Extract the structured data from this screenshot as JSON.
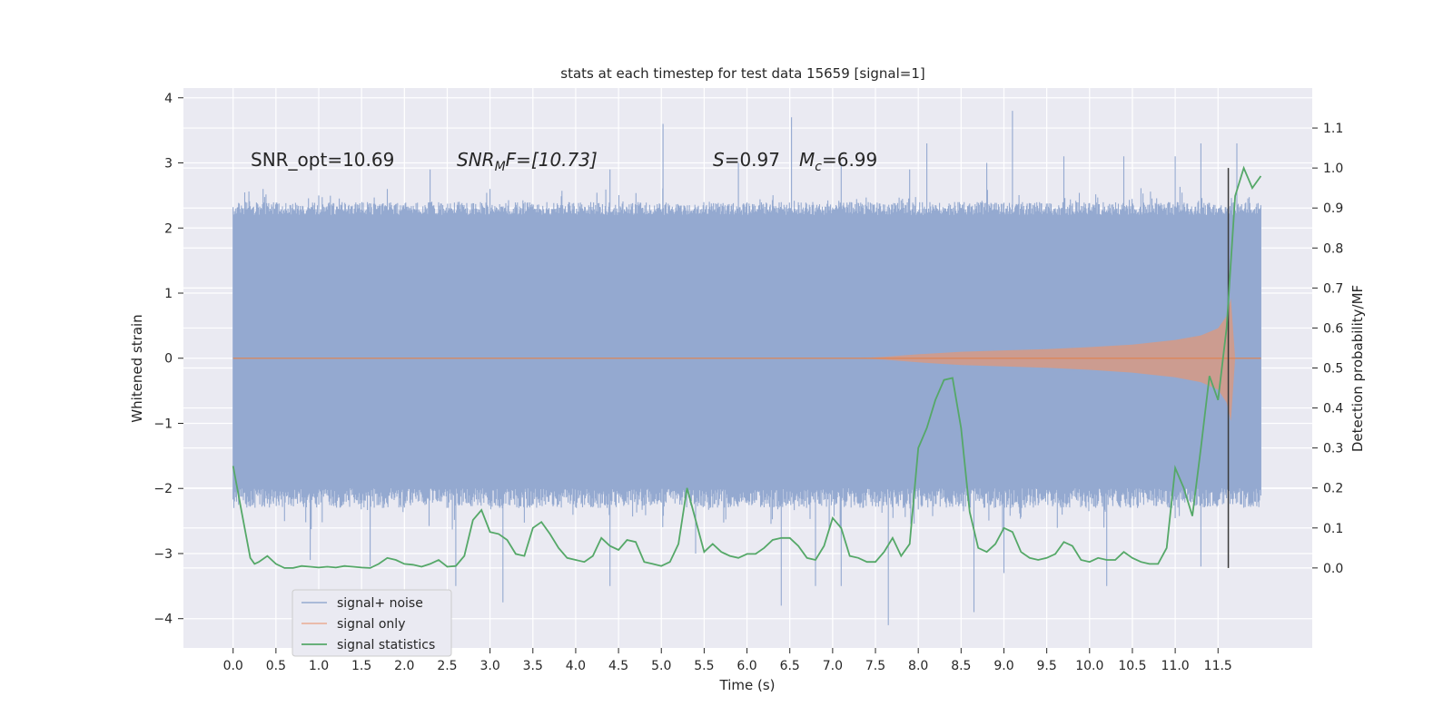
{
  "chart_data": {
    "type": "line",
    "title": "stats at each timestep for test data 15659 [signal=1]",
    "xlabel": "Time (s)",
    "ylabel": "Whitened strain",
    "y2label": "Detection probability/MF",
    "xlim": [
      -0.58,
      12.6
    ],
    "ylim": [
      -4.45,
      4.15
    ],
    "y2lim": [
      -0.2,
      1.2
    ],
    "x_ticks": [
      "0.0",
      "0.5",
      "1.0",
      "1.5",
      "2.0",
      "2.5",
      "3.0",
      "3.5",
      "4.0",
      "4.5",
      "5.0",
      "5.5",
      "6.0",
      "6.5",
      "7.0",
      "7.5",
      "8.0",
      "8.5",
      "9.0",
      "9.5",
      "10.0",
      "10.5",
      "11.0",
      "11.5"
    ],
    "y_ticks": [
      "4",
      "3",
      "2",
      "1",
      "0",
      "−1",
      "−2",
      "−3",
      "−4"
    ],
    "y2_ticks": [
      "1.1",
      "1.0",
      "0.9",
      "0.8",
      "0.7",
      "0.6",
      "0.5",
      "0.4",
      "0.3",
      "0.2",
      "0.1",
      "0.0"
    ],
    "grid": true,
    "legend_position": "lower-left",
    "annotations": {
      "snr_opt": "SNR_opt=10.69",
      "snr_mf_main": "SNR",
      "snr_mf_sub": "M",
      "snr_mf_rest": "F=[10.73]",
      "s_label": "S",
      "s_value": "=0.97",
      "mc_main": "M",
      "mc_sub": "c",
      "mc_value": "=6.99"
    },
    "merger_time": 11.62,
    "series": [
      {
        "name": "signal+ noise",
        "color": "#4c72b0",
        "x_range": [
          0.0,
          12.0
        ],
        "envelope": {
          "upper_typical": [
            2.2,
            2.4
          ],
          "lower_typical": [
            -2.3,
            -2.0
          ],
          "peaks_upper": [
            [
              0.35,
              2.6
            ],
            [
              1.0,
              2.5
            ],
            [
              1.8,
              2.6
            ],
            [
              2.3,
              2.9
            ],
            [
              3.0,
              2.6
            ],
            [
              4.4,
              2.9
            ],
            [
              5.02,
              3.6
            ],
            [
              5.9,
              3.0
            ],
            [
              6.52,
              3.7
            ],
            [
              7.1,
              3.0
            ],
            [
              7.9,
              2.9
            ],
            [
              8.1,
              3.3
            ],
            [
              8.8,
              3.0
            ],
            [
              9.1,
              3.8
            ],
            [
              9.7,
              3.1
            ],
            [
              10.4,
              3.1
            ],
            [
              11.0,
              3.1
            ],
            [
              11.3,
              3.3
            ],
            [
              11.72,
              3.3
            ]
          ],
          "peaks_lower": [
            [
              0.9,
              -3.1
            ],
            [
              1.6,
              -3.2
            ],
            [
              2.6,
              -3.5
            ],
            [
              3.15,
              -3.75
            ],
            [
              4.4,
              -3.5
            ],
            [
              5.4,
              -3.0
            ],
            [
              6.4,
              -3.8
            ],
            [
              6.8,
              -3.5
            ],
            [
              7.1,
              -3.5
            ],
            [
              7.65,
              -4.1
            ],
            [
              8.65,
              -3.9
            ],
            [
              9.0,
              -3.3
            ],
            [
              10.2,
              -3.5
            ],
            [
              11.3,
              -3.2
            ]
          ]
        }
      },
      {
        "name": "signal only",
        "color": "#dd8452",
        "x": [
          0.0,
          7.3,
          7.6,
          8.0,
          8.5,
          9.0,
          9.5,
          10.0,
          10.5,
          11.0,
          11.3,
          11.5,
          11.6,
          11.65,
          11.7,
          12.0
        ],
        "amplitude": [
          0.0,
          0.0,
          0.02,
          0.06,
          0.1,
          0.12,
          0.14,
          0.17,
          0.21,
          0.28,
          0.35,
          0.46,
          0.65,
          0.92,
          0.0,
          0.0
        ]
      },
      {
        "name": "signal statistics",
        "color": "#55a868",
        "x": [
          0.0,
          0.1,
          0.2,
          0.25,
          0.3,
          0.4,
          0.5,
          0.6,
          0.7,
          0.8,
          0.9,
          1.0,
          1.1,
          1.2,
          1.3,
          1.4,
          1.5,
          1.6,
          1.7,
          1.8,
          1.9,
          2.0,
          2.1,
          2.2,
          2.3,
          2.4,
          2.5,
          2.6,
          2.7,
          2.8,
          2.9,
          3.0,
          3.1,
          3.2,
          3.3,
          3.4,
          3.5,
          3.6,
          3.7,
          3.8,
          3.9,
          4.0,
          4.1,
          4.2,
          4.3,
          4.4,
          4.5,
          4.6,
          4.7,
          4.8,
          4.9,
          5.0,
          5.1,
          5.2,
          5.3,
          5.4,
          5.5,
          5.6,
          5.7,
          5.8,
          5.9,
          6.0,
          6.1,
          6.2,
          6.3,
          6.4,
          6.5,
          6.6,
          6.7,
          6.8,
          6.9,
          7.0,
          7.1,
          7.2,
          7.3,
          7.4,
          7.5,
          7.6,
          7.7,
          7.8,
          7.9,
          8.0,
          8.1,
          8.2,
          8.3,
          8.4,
          8.5,
          8.6,
          8.7,
          8.8,
          8.9,
          9.0,
          9.1,
          9.2,
          9.3,
          9.4,
          9.5,
          9.6,
          9.7,
          9.8,
          9.9,
          10.0,
          10.1,
          10.2,
          10.3,
          10.4,
          10.5,
          10.6,
          10.7,
          10.8,
          10.9,
          11.0,
          11.1,
          11.2,
          11.3,
          11.4,
          11.5,
          11.55,
          11.6,
          11.7,
          11.8,
          11.9,
          12.0
        ],
        "values": [
          0.255,
          0.14,
          0.025,
          0.01,
          0.015,
          0.03,
          0.01,
          0.0,
          0.0,
          0.005,
          0.003,
          0.001,
          0.003,
          0.001,
          0.005,
          0.003,
          0.001,
          0.0,
          0.01,
          0.025,
          0.02,
          0.01,
          0.008,
          0.003,
          0.01,
          0.02,
          0.003,
          0.005,
          0.03,
          0.12,
          0.145,
          0.09,
          0.085,
          0.07,
          0.035,
          0.03,
          0.1,
          0.115,
          0.085,
          0.05,
          0.025,
          0.02,
          0.015,
          0.03,
          0.075,
          0.055,
          0.045,
          0.07,
          0.065,
          0.015,
          0.01,
          0.005,
          0.015,
          0.06,
          0.2,
          0.12,
          0.04,
          0.06,
          0.04,
          0.03,
          0.025,
          0.035,
          0.035,
          0.05,
          0.07,
          0.075,
          0.075,
          0.055,
          0.025,
          0.02,
          0.055,
          0.125,
          0.1,
          0.03,
          0.025,
          0.015,
          0.015,
          0.04,
          0.075,
          0.03,
          0.06,
          0.3,
          0.35,
          0.42,
          0.47,
          0.475,
          0.35,
          0.14,
          0.05,
          0.04,
          0.06,
          0.1,
          0.09,
          0.04,
          0.025,
          0.02,
          0.025,
          0.035,
          0.065,
          0.055,
          0.02,
          0.015,
          0.025,
          0.02,
          0.02,
          0.04,
          0.025,
          0.015,
          0.01,
          0.01,
          0.05,
          0.25,
          0.2,
          0.13,
          0.3,
          0.48,
          0.42,
          0.51,
          0.6,
          0.93,
          1.0,
          0.95,
          0.98
        ]
      }
    ]
  }
}
